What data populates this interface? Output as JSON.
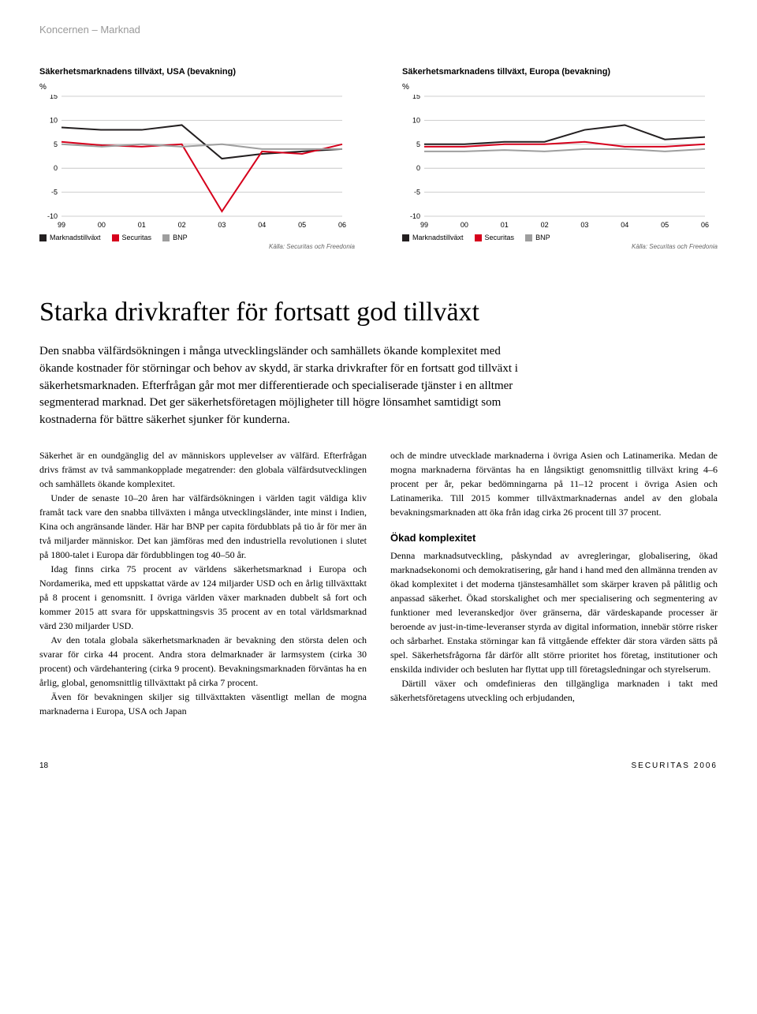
{
  "header": {
    "section": "Koncernen – Marknad"
  },
  "chart_usa": {
    "type": "line",
    "title": "Säkerhetsmarknadens tillväxt, USA (bevakning)",
    "y_unit": "%",
    "yticks": [
      -10,
      -5,
      0,
      5,
      10,
      15
    ],
    "xticks": [
      "99",
      "00",
      "01",
      "02",
      "03",
      "04",
      "05",
      "06"
    ],
    "gridline_color": "#bfbfbf",
    "axis_color": "#000000",
    "series": [
      {
        "name": "Marknadstillväxt",
        "color": "#231f20",
        "values": [
          8.5,
          8.0,
          8.0,
          9.0,
          2.0,
          3.0,
          3.5,
          4.0
        ]
      },
      {
        "name": "Securitas",
        "color": "#d6001c",
        "values": [
          5.5,
          4.8,
          4.5,
          5.0,
          -9.0,
          3.5,
          3.0,
          5.0
        ]
      },
      {
        "name": "BNP",
        "color": "#9e9e9e",
        "values": [
          5.0,
          4.5,
          5.0,
          4.5,
          5.0,
          4.0,
          4.0,
          4.0
        ]
      }
    ],
    "legend": [
      {
        "label": "Marknadstillväxt",
        "color": "#231f20"
      },
      {
        "label": "Securitas",
        "color": "#d6001c"
      },
      {
        "label": "BNP",
        "color": "#9e9e9e"
      }
    ],
    "source": "Källa: Securitas och Freedonia"
  },
  "chart_eu": {
    "type": "line",
    "title": "Säkerhetsmarknadens tillväxt, Europa (bevakning)",
    "y_unit": "%",
    "yticks": [
      -10,
      -5,
      0,
      5,
      10,
      15
    ],
    "xticks": [
      "99",
      "00",
      "01",
      "02",
      "03",
      "04",
      "05",
      "06"
    ],
    "gridline_color": "#bfbfbf",
    "axis_color": "#000000",
    "series": [
      {
        "name": "Marknadstillväxt",
        "color": "#231f20",
        "values": [
          5.0,
          5.0,
          5.5,
          5.5,
          8.0,
          9.0,
          6.0,
          6.5
        ]
      },
      {
        "name": "Securitas",
        "color": "#d6001c",
        "values": [
          4.5,
          4.5,
          5.0,
          5.0,
          5.5,
          4.5,
          4.5,
          5.0
        ]
      },
      {
        "name": "BNP",
        "color": "#9e9e9e",
        "values": [
          3.5,
          3.5,
          3.8,
          3.5,
          4.0,
          4.0,
          3.5,
          4.0
        ]
      }
    ],
    "legend": [
      {
        "label": "Marknadstillväxt",
        "color": "#231f20"
      },
      {
        "label": "Securitas",
        "color": "#d6001c"
      },
      {
        "label": "BNP",
        "color": "#9e9e9e"
      }
    ],
    "source": "Källa: Securitas och Freedonia"
  },
  "article": {
    "heading": "Starka drivkrafter för fortsatt god tillväxt",
    "lead": "Den snabba välfärdsökningen i många utvecklingsländer och samhällets ökande komplexitet med ökande kostnader för störningar och behov av skydd, är starka drivkrafter för en fortsatt god tillväxt i säkerhetsmarknaden. Efterfrågan går mot mer differentierade och specialiserade tjänster i en alltmer segmenterad marknad. Det ger säkerhetsföretagen möjligheter till högre lönsamhet samtidigt som kostnaderna för bättre säkerhet sjunker för kunderna.",
    "col1": {
      "p1": "Säkerhet är en oundgänglig del av människors upplevelser av välfärd. Efterfrågan drivs främst av två sammankopplade megatrender: den globala välfärdsutvecklingen och samhällets ökande komplexitet.",
      "p2": "Under de senaste 10–20 åren har välfärdsökningen i världen tagit väldiga kliv framåt tack vare den snabba tillväxten i många utvecklingsländer, inte minst i Indien, Kina och angränsande länder. Här har BNP per capita fördubblats på tio år för mer än två miljarder människor. Det kan jämföras med den industriella revolutionen i slutet på 1800-talet i Europa där fördubblingen tog 40–50 år.",
      "p3": "Idag finns cirka 75 procent av världens säkerhetsmarknad i Europa och Nordamerika, med ett uppskattat värde av 124 miljarder USD och en årlig tillväxttakt på 8 procent i genomsnitt. I övriga världen växer marknaden dubbelt så fort och kommer 2015 att svara för uppskattningsvis 35 procent av en total världsmarknad värd 230 miljarder USD.",
      "p4": "Av den totala globala säkerhetsmarknaden är bevakning den största delen och svarar för cirka 44 procent. Andra stora delmarknader är larmsystem (cirka 30 procent) och värdehantering (cirka 9 procent). Bevakningsmarknaden förväntas ha en årlig, global, genomsnittlig tillväxttakt på cirka 7 procent.",
      "p5": "Även för bevakningen skiljer sig tillväxttakten väsentligt mellan de mogna marknaderna i Europa, USA och Japan"
    },
    "col2": {
      "p1": "och de mindre utvecklade marknaderna i övriga Asien och Latinamerika. Medan de mogna marknaderna förväntas ha en långsiktigt genomsnittlig tillväxt kring 4–6 procent per år, pekar bedömningarna på 11–12 procent i övriga Asien och Latinamerika. Till 2015 kommer tillväxtmarknadernas andel av den globala bevakningsmarknaden att öka från idag cirka 26 procent till 37 procent.",
      "subhead": "Ökad komplexitet",
      "p2": "Denna marknadsutveckling, påskyndad av avregleringar, globalisering, ökad marknadsekonomi och demokratisering, går hand i hand med den allmänna trenden av ökad komplexitet i det moderna tjänstesamhället som skärper kraven på pålitlig och anpassad säkerhet. Ökad storskalighet och mer specialisering och segmentering av funktioner med leveranskedjor över gränserna, där värdeskapande processer är beroende av just-in-time-leveranser styrda av digital information, innebär större risker och sårbarhet. Enstaka störningar kan få vittgående effekter där stora värden sätts på spel. Säkerhetsfrågorna får därför allt större prioritet hos företag, institutioner och enskilda individer och besluten har flyttat upp till företagsledningar och styrelserum.",
      "p3": "Därtill växer och omdefinieras den tillgängliga marknaden i takt med säkerhetsföretagens utveckling och erbjudanden,"
    }
  },
  "footer": {
    "page": "18",
    "brand": "SECURITAS 2006"
  }
}
